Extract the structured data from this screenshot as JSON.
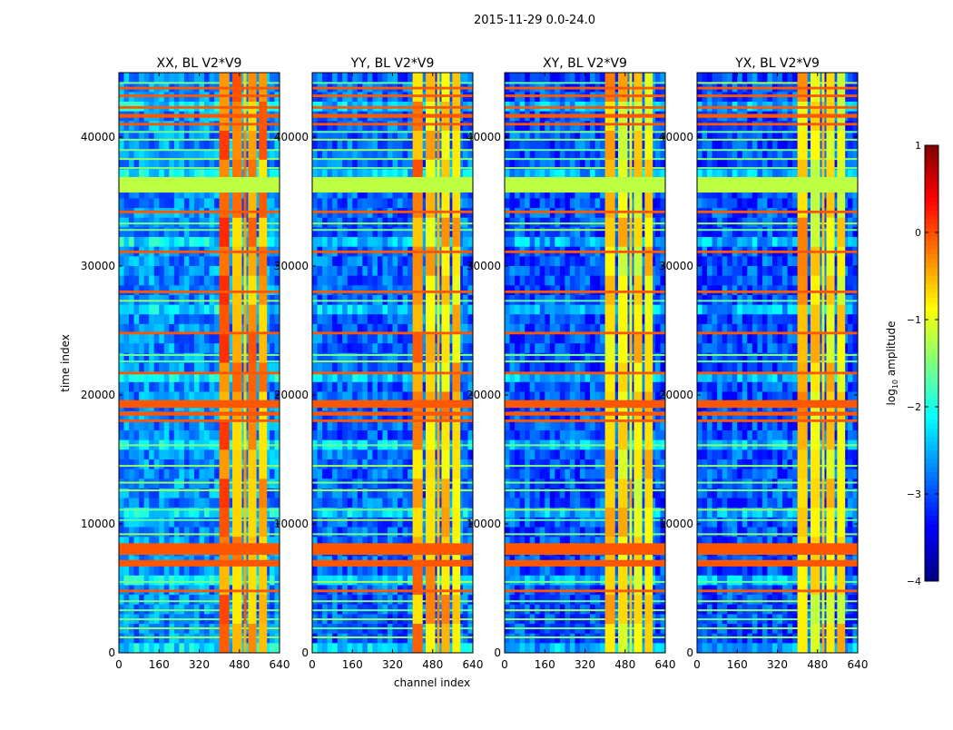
{
  "chart_data": {
    "type": "heatmap",
    "suptitle": "2015-11-29 0.0-24.0",
    "xlabel": "channel index",
    "ylabel": "time index",
    "xlim": [
      0,
      640
    ],
    "ylim": [
      0,
      45000
    ],
    "xticks": [
      0,
      160,
      320,
      480,
      640
    ],
    "yticks": [
      0,
      10000,
      20000,
      30000,
      40000
    ],
    "xtick_labels": [
      "0",
      "160",
      "320",
      "480",
      "640"
    ],
    "ytick_labels": [
      "0",
      "10000",
      "20000",
      "30000",
      "40000"
    ],
    "panels": [
      {
        "title": "XX, BL V2*V9",
        "background_level": -2.7,
        "rfi_level": -0.4
      },
      {
        "title": "YY, BL V2*V9",
        "background_level": -2.9,
        "rfi_level": -0.6
      },
      {
        "title": "XY, BL V2*V9",
        "background_level": -3.0,
        "rfi_level": -0.8
      },
      {
        "title": "YX, BL V2*V9",
        "background_level": -3.0,
        "rfi_level": -0.8
      }
    ],
    "rfi_channel_ranges": [
      [
        400,
        440
      ],
      [
        452,
        490
      ],
      [
        497,
        508
      ],
      [
        515,
        548
      ],
      [
        558,
        590
      ]
    ],
    "flagged_time_range": {
      "range": [
        35700,
        36900
      ],
      "level": -1.2
    },
    "high_time_bands": [
      [
        6700,
        7200
      ],
      [
        7600,
        8500
      ],
      [
        4700,
        4900
      ],
      [
        17900,
        18100
      ],
      [
        18400,
        18700
      ],
      [
        19000,
        19600
      ],
      [
        21600,
        21800
      ],
      [
        24700,
        24900
      ],
      [
        27900,
        28100
      ],
      [
        31000,
        31200
      ],
      [
        34100,
        34300
      ],
      [
        40900,
        41100
      ],
      [
        41500,
        41800
      ],
      [
        42200,
        42400
      ],
      [
        43100,
        43300
      ],
      [
        43700,
        43900
      ]
    ],
    "light_time_lines": [
      1200,
      1900,
      2600,
      3300,
      4000,
      5500,
      9200,
      10300,
      11100,
      12600,
      13200,
      14500,
      16100,
      22600,
      23100,
      27300,
      32800,
      33300,
      37600,
      38300,
      39000,
      39800,
      40400,
      44200
    ],
    "colorbar": {
      "label": "log10 amplitude",
      "label_main": "log",
      "label_sub": "10",
      "label_rest": " amplitude",
      "range": [
        -4,
        1
      ],
      "ticks": [
        1,
        0,
        -1,
        -2,
        -3,
        -4
      ],
      "tick_labels": [
        "1",
        "0",
        "−1",
        "−2",
        "−3",
        "−4"
      ],
      "colormap": "jet"
    }
  }
}
